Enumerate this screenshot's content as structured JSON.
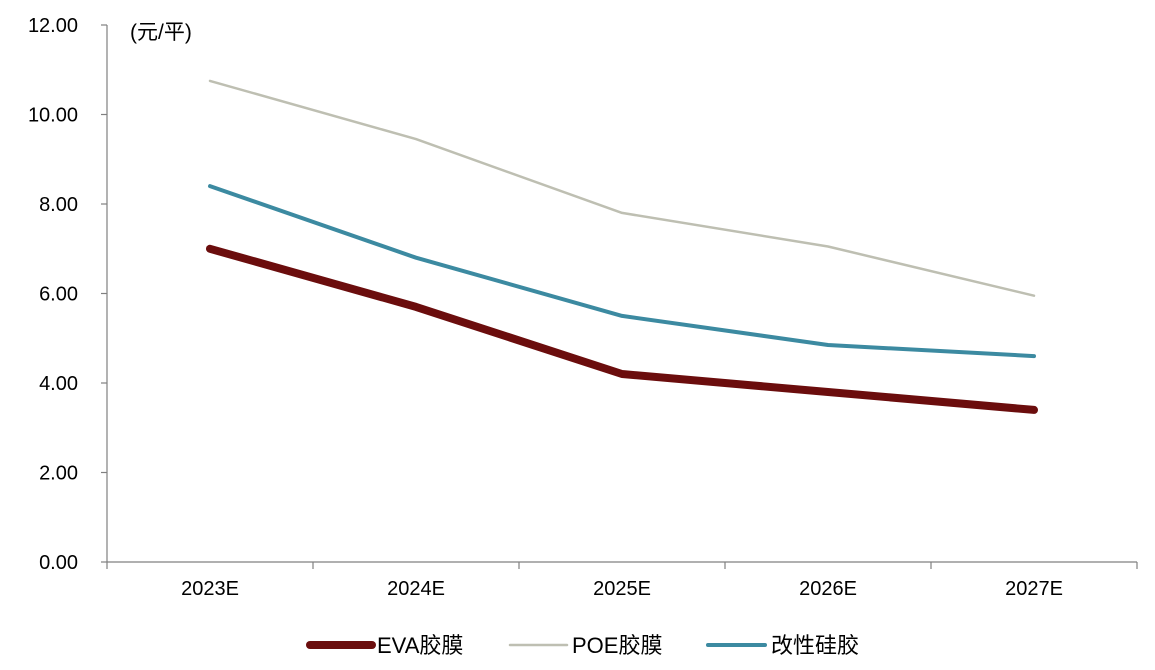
{
  "chart_data": {
    "type": "line",
    "unit_label": "(元/平)",
    "categories": [
      "2023E",
      "2024E",
      "2025E",
      "2026E",
      "2027E"
    ],
    "ylim": [
      0,
      12
    ],
    "yticks": [
      "0.00",
      "2.00",
      "4.00",
      "6.00",
      "8.00",
      "10.00",
      "12.00"
    ],
    "grid": false,
    "legend_position": "bottom",
    "series": [
      {
        "name": "EVA胶膜",
        "color": "#6b0d0d",
        "values": [
          7.0,
          5.7,
          4.2,
          3.8,
          3.4
        ]
      },
      {
        "name": "POE胶膜",
        "color": "#bebfb2",
        "values": [
          10.75,
          9.45,
          7.8,
          7.05,
          5.95
        ]
      },
      {
        "name": "改性硅胶",
        "color": "#3c8aa1",
        "values": [
          8.4,
          6.8,
          5.5,
          4.85,
          4.6
        ]
      }
    ]
  }
}
